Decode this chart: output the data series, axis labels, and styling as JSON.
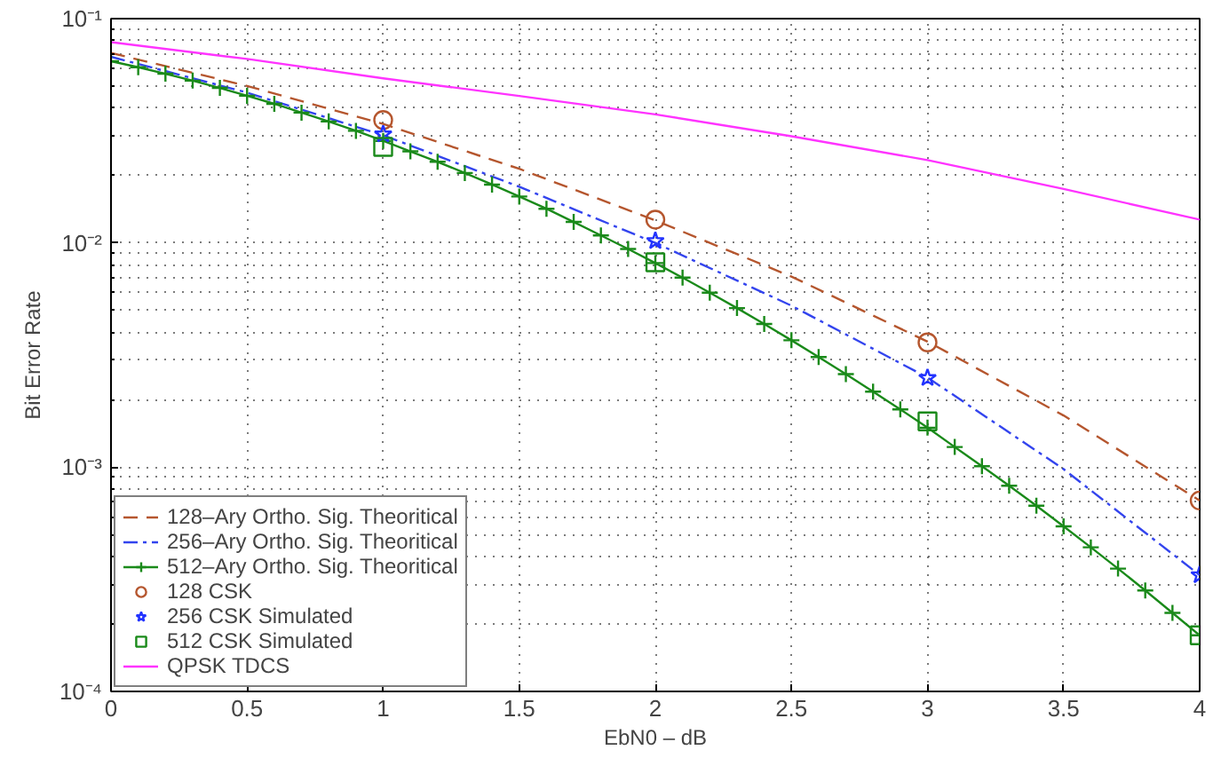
{
  "chart_data": {
    "type": "line",
    "xlabel": "EbN0 – dB",
    "ylabel": "Bit Error Rate",
    "log": "y",
    "grid": true,
    "legend": "bottom left",
    "xlim": [
      0,
      4
    ],
    "xticks": [
      0,
      0.5,
      1,
      1.5,
      2,
      2.5,
      3,
      3.5,
      4
    ],
    "ylim": [
      0.0001,
      0.1
    ],
    "yticks": [
      {
        "value": 0.0001,
        "label": "10⁻⁴"
      },
      {
        "value": 0.001,
        "label": "10⁻³"
      },
      {
        "value": 0.01,
        "label": "10⁻²"
      },
      {
        "value": 0.1,
        "label": "10⁻¹"
      }
    ],
    "series": [
      {
        "name": "128–Ary Ortho. Sig. Theoritical",
        "color": "#b5562e",
        "line_style": "dashed",
        "marker": "none",
        "x": [
          0,
          0.5,
          1,
          1.5,
          2,
          2.5,
          3,
          3.5,
          4
        ],
        "values": [
          0.0703,
          0.0501,
          0.0339,
          0.0214,
          0.0126,
          0.00708,
          0.00363,
          0.0017,
          0.00071
        ]
      },
      {
        "name": "256–Ary Ortho. Sig. Theoritical",
        "color": "#3344ee",
        "line_style": "dashdot",
        "marker": "none",
        "x": [
          0,
          0.5,
          1,
          1.5,
          2,
          2.5,
          3,
          3.5,
          4
        ],
        "values": [
          0.0676,
          0.0468,
          0.0302,
          0.0178,
          0.01,
          0.00525,
          0.00251,
          0.00098,
          0.00033
        ]
      },
      {
        "name": "512–Ary Ortho. Sig. Theoritical",
        "color": "#1a8a1a",
        "line_style": "solid",
        "marker": "cross",
        "x": [
          0,
          0.1,
          0.2,
          0.3,
          0.4,
          0.5,
          0.6,
          0.7,
          0.8,
          0.9,
          1,
          1.1,
          1.2,
          1.3,
          1.4,
          1.5,
          1.6,
          1.7,
          1.8,
          1.9,
          2,
          2.1,
          2.2,
          2.3,
          2.4,
          2.5,
          2.6,
          2.7,
          2.8,
          2.9,
          3,
          3.1,
          3.2,
          3.3,
          3.4,
          3.5,
          3.6,
          3.7,
          3.8,
          3.9,
          4
        ],
        "values": [
          0.0646,
          0.0607,
          0.0568,
          0.0529,
          0.0491,
          0.0453,
          0.0417,
          0.0381,
          0.0348,
          0.0316,
          0.0285,
          0.0256,
          0.023,
          0.0205,
          0.0182,
          0.0161,
          0.0142,
          0.0124,
          0.0108,
          0.0094,
          0.00813,
          0.007,
          0.006,
          0.00512,
          0.00435,
          0.00368,
          0.0031,
          0.0026,
          0.00217,
          0.00181,
          0.0015,
          0.00123,
          0.00101,
          0.000827,
          0.000673,
          0.000545,
          0.000439,
          0.000353,
          0.000282,
          0.000224,
          0.000178
        ]
      },
      {
        "name": "128 CSK",
        "type": "scatter",
        "color": "#b5562e",
        "marker": "circle",
        "x": [
          1,
          2,
          3,
          4
        ],
        "values": [
          0.0353,
          0.0127,
          0.0036,
          0.00071
        ]
      },
      {
        "name": "256 CSK Simulated",
        "type": "scatter",
        "color": "#2233ff",
        "marker": "star",
        "x": [
          1,
          2,
          3,
          4
        ],
        "values": [
          0.0305,
          0.0102,
          0.0025,
          0.00033
        ]
      },
      {
        "name": "512 CSK Simulated",
        "type": "scatter",
        "color": "#1a8a1a",
        "marker": "square",
        "x": [
          1,
          2,
          3,
          4
        ],
        "values": [
          0.0268,
          0.0082,
          0.0016,
          0.000178
        ]
      },
      {
        "name": "QPSK TDCS",
        "color": "#ff33ff",
        "line_style": "solid",
        "marker": "none",
        "x": [
          0,
          0.5,
          1,
          1.5,
          2,
          2.5,
          3,
          3.5,
          4
        ],
        "values": [
          0.0785,
          0.0661,
          0.0542,
          0.0452,
          0.0374,
          0.0299,
          0.0234,
          0.0174,
          0.0127
        ]
      }
    ]
  }
}
